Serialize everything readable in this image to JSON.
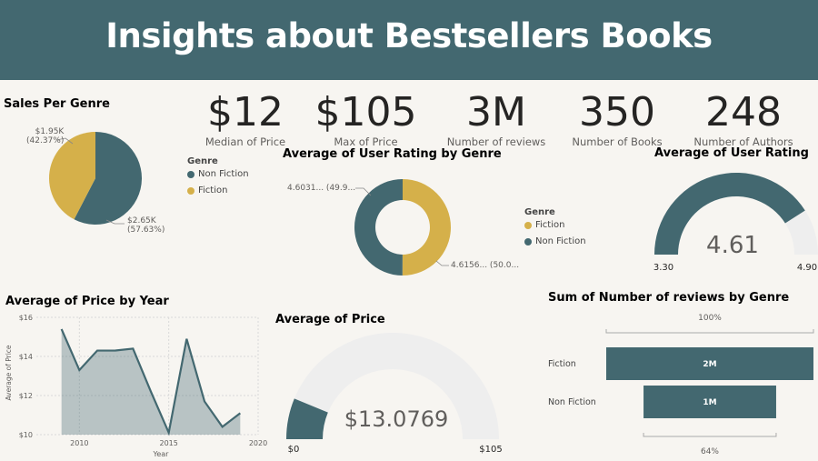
{
  "header": {
    "title": "Insights about Bestsellers Books"
  },
  "colors": {
    "teal": "#436870",
    "gold": "#d5b04a",
    "track": "#eeeeee",
    "header_bg": "#436870"
  },
  "kpis": [
    {
      "value": "$12",
      "label": "Median of Price"
    },
    {
      "value": "$105",
      "label": "Max of Price"
    },
    {
      "value": "3M",
      "label": "Number of reviews"
    },
    {
      "value": "350",
      "label": "Number of Books"
    },
    {
      "value": "248",
      "label": "Number of Authors"
    }
  ],
  "chart_data": [
    {
      "type": "pie",
      "title": "Sales Per Genre",
      "legend_title": "Genre",
      "legend_position": "right",
      "slices": [
        {
          "label": "Non Fiction",
          "value": 2650,
          "value_label": "$2.65K",
          "pct_label": "(57.63%)",
          "color": "#436870"
        },
        {
          "label": "Fiction",
          "value": 1950,
          "value_label": "$1.95K",
          "pct_label": "(42.37%)",
          "color": "#d5b04a"
        }
      ]
    },
    {
      "type": "pie",
      "subtype": "donut",
      "title": "Average of User Rating by Genre",
      "legend_title": "Genre",
      "legend_position": "right",
      "slices": [
        {
          "label": "Fiction",
          "value": 4.6156,
          "data_label": "4.6156... (50.0...",
          "color": "#d5b04a"
        },
        {
          "label": "Non Fiction",
          "value": 4.6031,
          "data_label": "4.6031... (49.9...",
          "color": "#436870"
        }
      ]
    },
    {
      "type": "gauge",
      "title": "Average of User Rating",
      "value": 4.61,
      "value_label": "4.61",
      "min": 3.3,
      "max": 4.9,
      "min_label": "3.30",
      "max_label": "4.90"
    },
    {
      "type": "area",
      "title": "Average of Price by Year",
      "xlabel": "Year",
      "ylabel": "Average of Price",
      "x": [
        2009,
        2010,
        2011,
        2012,
        2013,
        2014,
        2015,
        2016,
        2017,
        2018,
        2019
      ],
      "values": [
        15.4,
        13.3,
        14.3,
        14.3,
        14.4,
        12.2,
        10.1,
        14.9,
        11.7,
        10.4,
        11.1
      ],
      "xlim": [
        2008,
        2020
      ],
      "ylim": [
        10,
        16
      ],
      "xticks": [
        "2010",
        "2015",
        "2020"
      ],
      "yticks": [
        "$10",
        "$12",
        "$14",
        "$16"
      ],
      "grid": true
    },
    {
      "type": "gauge",
      "title": "Average of Price",
      "value": 13.0769,
      "value_label": "$13.0769",
      "min": 0,
      "max": 105,
      "min_label": "$0",
      "max_label": "$105"
    },
    {
      "type": "funnel",
      "title": "Sum of Number of reviews by Genre",
      "categories": [
        "Fiction",
        "Non Fiction"
      ],
      "values": [
        2.0,
        1.28
      ],
      "value_labels": [
        "2M",
        "1M"
      ],
      "top_label": "100%",
      "bottom_label": "64%"
    }
  ]
}
